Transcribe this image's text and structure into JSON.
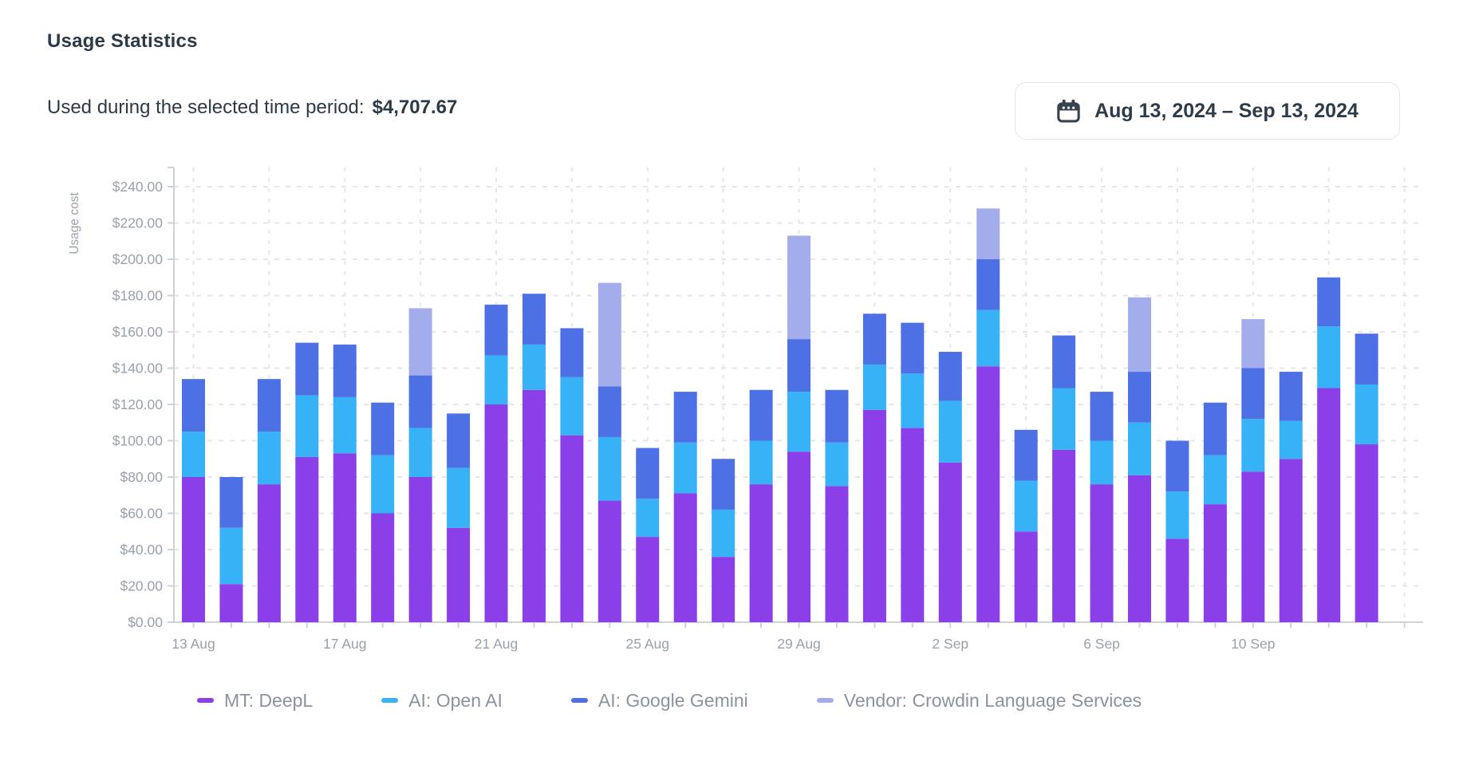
{
  "header": {
    "title": "Usage Statistics",
    "subtitle": "Used during the selected time period:",
    "total": "$4,707.67",
    "date_range": "Aug 13, 2024 – Sep 13, 2024",
    "date_range_icon": "calendar-icon"
  },
  "colors": {
    "deepl_purple": "#8a3fe8",
    "openai_cyan": "#38b2f6",
    "gemini_blue": "#4e70e5",
    "vendor_lavender": "#a4adec",
    "axis_text": "#99a1ab",
    "legend_text": "#8b939c",
    "grid_line": "#e4e6ea",
    "axis_line": "#ccd2d8",
    "dark_text": "#2c3a46"
  },
  "chart_data": {
    "type": "bar",
    "stacked": true,
    "ylabel": "Usage cost",
    "xlabel": "",
    "ylim": [
      0,
      250
    ],
    "y_ticks": [
      0,
      20,
      40,
      60,
      80,
      100,
      120,
      140,
      160,
      180,
      200,
      220,
      240
    ],
    "y_tick_prefix": "$",
    "y_tick_decimals": 2,
    "grid": "dashed",
    "legend_position": "bottom",
    "x_label_every": 4,
    "categories": [
      "13 Aug",
      "14 Aug",
      "15 Aug",
      "16 Aug",
      "17 Aug",
      "18 Aug",
      "19 Aug",
      "20 Aug",
      "21 Aug",
      "22 Aug",
      "23 Aug",
      "24 Aug",
      "25 Aug",
      "26 Aug",
      "27 Aug",
      "28 Aug",
      "29 Aug",
      "30 Aug",
      "31 Aug",
      "1 Sep",
      "2 Sep",
      "3 Sep",
      "4 Sep",
      "5 Sep",
      "6 Sep",
      "7 Sep",
      "8 Sep",
      "9 Sep",
      "10 Sep",
      "11 Sep",
      "12 Sep",
      "13 Sep"
    ],
    "series": [
      {
        "name": "MT: DeepL",
        "color": "#8a3fe8",
        "values": [
          80,
          21,
          76,
          91,
          93,
          60,
          80,
          52,
          120,
          128,
          103,
          67,
          47,
          71,
          36,
          76,
          94,
          75,
          117,
          107,
          88,
          141,
          50,
          95,
          76,
          81,
          46,
          65,
          83,
          90,
          129,
          98
        ]
      },
      {
        "name": "AI: Open AI",
        "color": "#38b2f6",
        "values": [
          25,
          31,
          29,
          34,
          31,
          32,
          27,
          33,
          27,
          25,
          32,
          35,
          21,
          28,
          26,
          24,
          33,
          24,
          25,
          30,
          34,
          31,
          28,
          34,
          24,
          29,
          26,
          27,
          29,
          21,
          34,
          33
        ]
      },
      {
        "name": "AI: Google Gemini",
        "color": "#4e70e5",
        "values": [
          29,
          28,
          29,
          29,
          29,
          29,
          29,
          30,
          28,
          28,
          27,
          28,
          28,
          28,
          28,
          28,
          29,
          29,
          28,
          28,
          27,
          28,
          28,
          29,
          27,
          28,
          28,
          29,
          28,
          27,
          27,
          28
        ]
      },
      {
        "name": "Vendor: Crowdin Language Services",
        "color": "#a4adec",
        "values": [
          0,
          0,
          0,
          0,
          0,
          0,
          37,
          0,
          0,
          0,
          0,
          57,
          0,
          0,
          0,
          0,
          57,
          0,
          0,
          0,
          0,
          28,
          0,
          0,
          0,
          41,
          0,
          0,
          27,
          0,
          0,
          0
        ]
      }
    ]
  }
}
